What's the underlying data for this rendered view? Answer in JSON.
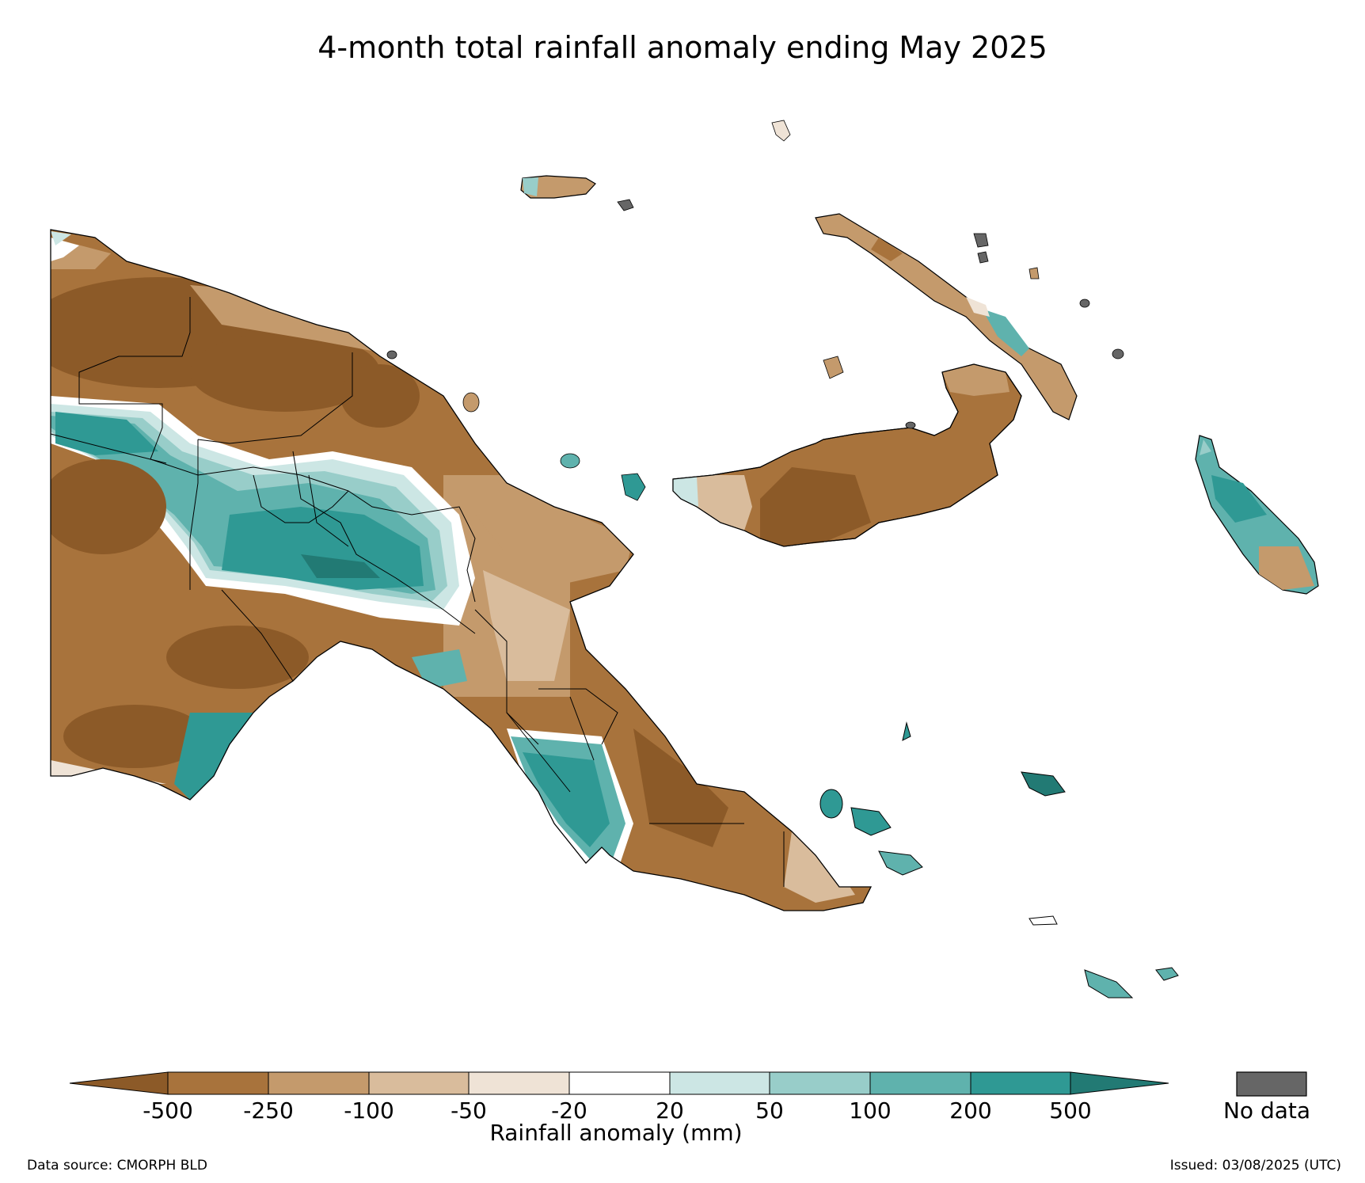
{
  "title": "4-month total rainfall anomaly ending May 2025",
  "colorbar": {
    "label": "Rainfall anomaly (mm)",
    "ticks": [
      "-500",
      "-250",
      "-100",
      "-50",
      "-20",
      "20",
      "50",
      "100",
      "200",
      "500"
    ],
    "colors": {
      "lt_neg500": "#8c5a28",
      "neg500_neg250": "#a8733c",
      "neg250_neg100": "#c49a6c",
      "neg100_neg50": "#d9bc9c",
      "neg50_neg20": "#efe3d6",
      "neg20_20": "#ffffff",
      "20_50": "#cce6e4",
      "50_100": "#98cdc9",
      "100_200": "#5fb2ad",
      "200_500": "#2f9994",
      "gt_500": "#227a74"
    },
    "no_data_label": "No data",
    "no_data_color": "#666666"
  },
  "footer": {
    "source": "Data source: CMORPH BLD",
    "issued": "Issued: 03/08/2025 (UTC)"
  }
}
